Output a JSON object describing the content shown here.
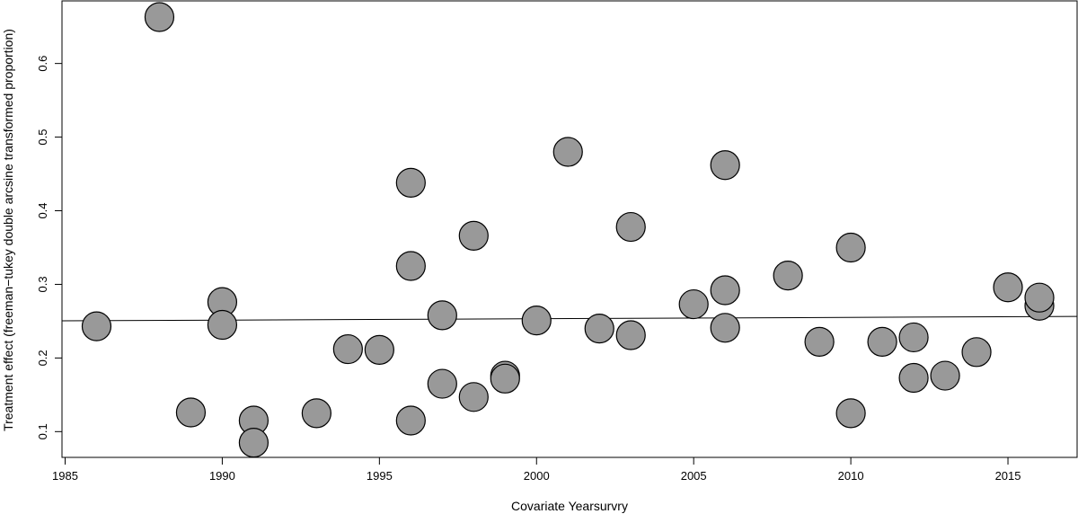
{
  "chart_data": {
    "type": "scatter",
    "title": "",
    "xlabel": "Covariate Yearsurvry",
    "ylabel": "Treatment effect (freeman−tukey double arcsine transformed proportion)",
    "xlim": [
      1984.9,
      2017.2
    ],
    "ylim": [
      0.065,
      0.685
    ],
    "xticks": [
      1985,
      1990,
      1995,
      2000,
      2005,
      2010,
      2015
    ],
    "yticks": [
      0.1,
      0.2,
      0.3,
      0.4,
      0.5,
      0.6
    ],
    "xtick_labels": [
      "1985",
      "1990",
      "1995",
      "2000",
      "2005",
      "2010",
      "2015"
    ],
    "ytick_labels": [
      "0.1",
      "0.2",
      "0.3",
      "0.4",
      "0.5",
      "0.6"
    ],
    "grid": false,
    "legend": "none",
    "point_color": "#999999",
    "point_stroke": "#000000",
    "points": [
      {
        "x": 1986,
        "y": 0.243
      },
      {
        "x": 1988,
        "y": 0.663
      },
      {
        "x": 1989,
        "y": 0.126
      },
      {
        "x": 1990,
        "y": 0.276
      },
      {
        "x": 1990,
        "y": 0.245
      },
      {
        "x": 1991,
        "y": 0.115
      },
      {
        "x": 1991,
        "y": 0.085
      },
      {
        "x": 1993,
        "y": 0.125
      },
      {
        "x": 1994,
        "y": 0.212
      },
      {
        "x": 1995,
        "y": 0.211
      },
      {
        "x": 1996,
        "y": 0.438
      },
      {
        "x": 1996,
        "y": 0.325
      },
      {
        "x": 1996,
        "y": 0.115
      },
      {
        "x": 1997,
        "y": 0.258
      },
      {
        "x": 1997,
        "y": 0.165
      },
      {
        "x": 1998,
        "y": 0.366
      },
      {
        "x": 1998,
        "y": 0.147
      },
      {
        "x": 1999,
        "y": 0.176
      },
      {
        "x": 1999,
        "y": 0.172
      },
      {
        "x": 2000,
        "y": 0.251
      },
      {
        "x": 2001,
        "y": 0.48
      },
      {
        "x": 2002,
        "y": 0.24
      },
      {
        "x": 2003,
        "y": 0.378
      },
      {
        "x": 2003,
        "y": 0.231
      },
      {
        "x": 2005,
        "y": 0.273
      },
      {
        "x": 2006,
        "y": 0.462
      },
      {
        "x": 2006,
        "y": 0.292
      },
      {
        "x": 2006,
        "y": 0.241
      },
      {
        "x": 2008,
        "y": 0.312
      },
      {
        "x": 2009,
        "y": 0.222
      },
      {
        "x": 2010,
        "y": 0.35
      },
      {
        "x": 2010,
        "y": 0.125
      },
      {
        "x": 2011,
        "y": 0.222
      },
      {
        "x": 2012,
        "y": 0.228
      },
      {
        "x": 2012,
        "y": 0.173
      },
      {
        "x": 2013,
        "y": 0.176
      },
      {
        "x": 2014,
        "y": 0.208
      },
      {
        "x": 2015,
        "y": 0.296
      },
      {
        "x": 2016,
        "y": 0.271
      },
      {
        "x": 2016,
        "y": 0.282
      }
    ],
    "regression_line": {
      "x": [
        1984.9,
        2017.2
      ],
      "y": [
        0.2505,
        0.2565
      ]
    }
  }
}
